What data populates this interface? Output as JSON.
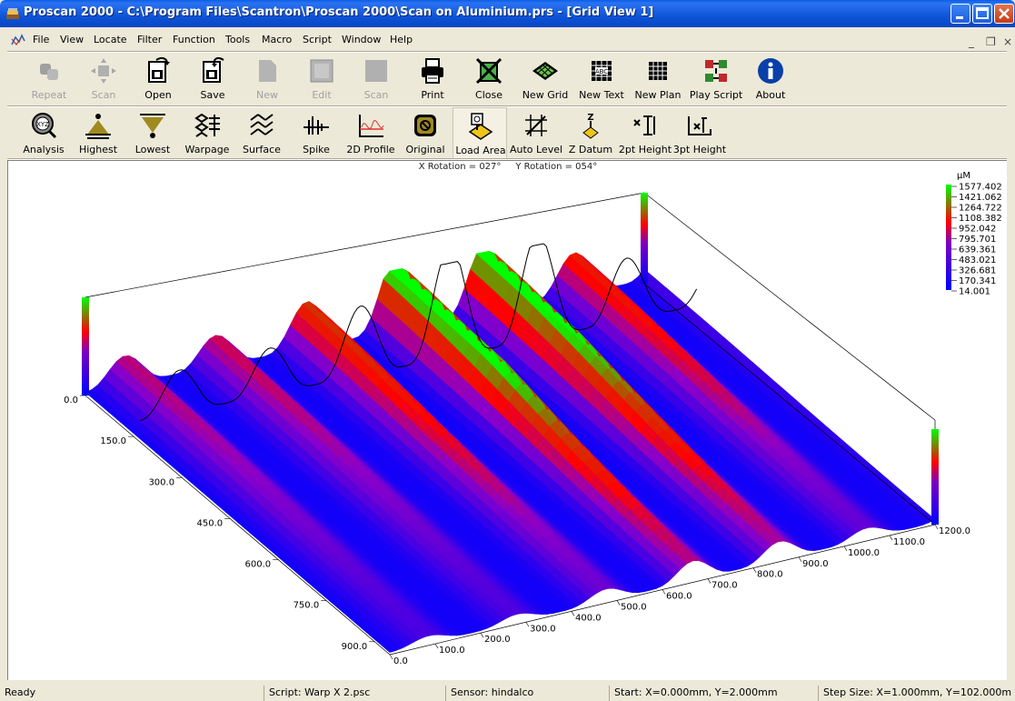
{
  "window": {
    "title": "Proscan 2000 - C:\\Program Files\\Scantron\\Proscan 2000\\Scan on Aluminium.prs - [Grid View 1]"
  },
  "menu": [
    "File",
    "View",
    "Locate",
    "Filter",
    "Function",
    "Tools",
    "Macro",
    "Script",
    "Window",
    "Help"
  ],
  "mdi_controls": {
    "minimize": "_",
    "restore": "❐",
    "close": "×"
  },
  "toolbar1": [
    {
      "label": "Repeat",
      "icon": "repeat-icon",
      "enabled": false
    },
    {
      "label": "Scan",
      "icon": "scan-move-icon",
      "enabled": false
    },
    {
      "label": "Open",
      "icon": "open-icon",
      "enabled": true
    },
    {
      "label": "Save",
      "icon": "save-icon",
      "enabled": true
    },
    {
      "label": "New",
      "icon": "new-doc-icon",
      "enabled": false
    },
    {
      "label": "Edit",
      "icon": "edit-icon",
      "enabled": false
    },
    {
      "label": "Scan",
      "icon": "scan-icon",
      "enabled": false
    },
    {
      "label": "Print",
      "icon": "print-icon",
      "enabled": true
    },
    {
      "label": "Close",
      "icon": "close-grid-icon",
      "enabled": true
    },
    {
      "label": "New Grid",
      "icon": "new-grid-icon",
      "enabled": true
    },
    {
      "label": "New Text",
      "icon": "new-text-icon",
      "enabled": true
    },
    {
      "label": "New Plan",
      "icon": "new-plan-icon",
      "enabled": true
    },
    {
      "label": "Play Script",
      "icon": "play-script-icon",
      "enabled": true
    },
    {
      "label": "About",
      "icon": "info-icon",
      "enabled": true
    }
  ],
  "toolbar2": [
    {
      "label": "Analysis",
      "icon": "analysis-icon"
    },
    {
      "label": "Highest",
      "icon": "highest-icon"
    },
    {
      "label": "Lowest",
      "icon": "lowest-icon"
    },
    {
      "label": "Warpage",
      "icon": "warpage-icon"
    },
    {
      "label": "Surface",
      "icon": "surface-icon"
    },
    {
      "label": "Spike",
      "icon": "spike-icon"
    },
    {
      "label": "2D Profile",
      "icon": "profile-2d-icon"
    },
    {
      "label": "Original",
      "icon": "original-icon"
    },
    {
      "label": "Load Area",
      "icon": "load-area-icon"
    },
    {
      "label": "Auto Level",
      "icon": "auto-level-icon"
    },
    {
      "label": "Z Datum",
      "icon": "z-datum-icon"
    },
    {
      "label": "2pt Height",
      "icon": "height-2pt-icon"
    },
    {
      "label": "3pt Height",
      "icon": "height-3pt-icon"
    }
  ],
  "view": {
    "x_rotation": "X Rotation = 027°",
    "y_rotation": "Y Rotation = 054°"
  },
  "chart_data": {
    "type": "surface3d",
    "legend": {
      "unit": "µM",
      "values": [
        "1577.402",
        "1421.062",
        "1264.722",
        "1108.382",
        "952.042",
        "795.701",
        "639.361",
        "483.021",
        "326.681",
        "170.341",
        "14.001"
      ],
      "placement": "top-right"
    },
    "x_axis_ticks": [
      "0.0",
      "100.0",
      "200.0",
      "300.0",
      "400.0",
      "500.0",
      "600.0",
      "700.0",
      "800.0",
      "900.0",
      "1000.0",
      "1100.0",
      "1200.0"
    ],
    "y_axis_ticks": [
      "0.0",
      "150.0",
      "300.0",
      "450.0",
      "600.0",
      "750.0",
      "900.0"
    ],
    "x_rotation_deg": 27,
    "y_rotation_deg": 54,
    "colors": {
      "low": "#0000FF",
      "mid": "#FF0000",
      "high": "#00FF00",
      "base": "#6A0DAD"
    }
  },
  "status": {
    "ready": "Ready",
    "script": "Script: Warp X 2.psc",
    "sensor": "Sensor: hindalco",
    "start": "Start: X=0.000mm, Y=2.000mm",
    "step": "Step Size: X=1.000mm, Y=102.000m"
  }
}
